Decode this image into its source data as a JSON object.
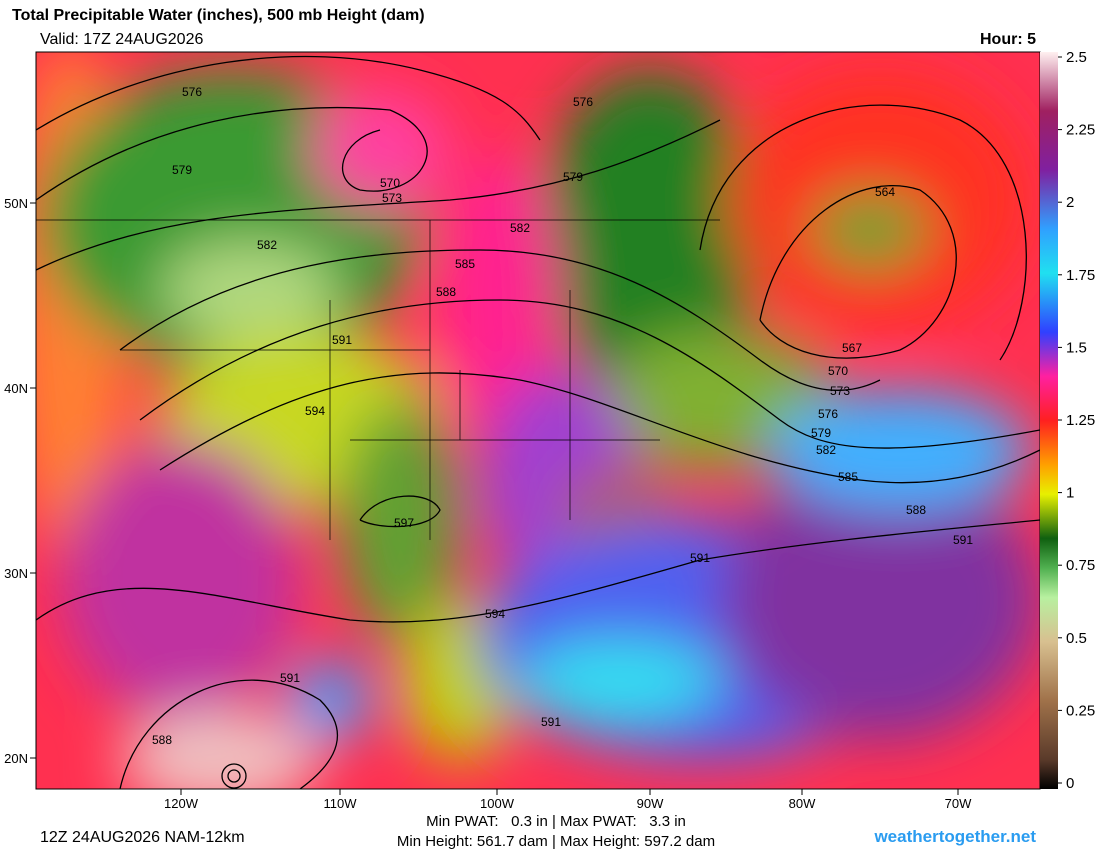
{
  "header": {
    "title": "Total Precipitable Water (inches), 500 mb Height (dam)",
    "valid": "Valid: 17Z 24AUG2026",
    "hour": "Hour: 5"
  },
  "colorbar": {
    "lim": [
      0,
      2.5
    ],
    "ticks": [
      0,
      0.25,
      0.5,
      0.75,
      1,
      1.25,
      1.5,
      1.75,
      2,
      2.25,
      2.5
    ]
  },
  "map": {
    "lon_labels": [
      "120W",
      "110W",
      "100W",
      "90W",
      "80W",
      "70W"
    ],
    "lat_labels": [
      "50N",
      "40N",
      "30N",
      "20N"
    ],
    "contour_labels": [
      "576",
      "579",
      "570",
      "573",
      "576",
      "579",
      "582",
      "582",
      "585",
      "588",
      "591",
      "594",
      "597",
      "564",
      "567",
      "570",
      "573",
      "576",
      "579",
      "582",
      "585",
      "588",
      "591",
      "591",
      "594",
      "591",
      "588",
      "591"
    ]
  },
  "footer": {
    "run": "12Z 24AUG2026 NAM-12km",
    "pwat": "Min PWAT:   0.3 in | Max PWAT:   3.3 in",
    "height": "Min Height: 561.7 dam | Max Height: 597.2 dam",
    "site": "weathertogether.net"
  }
}
